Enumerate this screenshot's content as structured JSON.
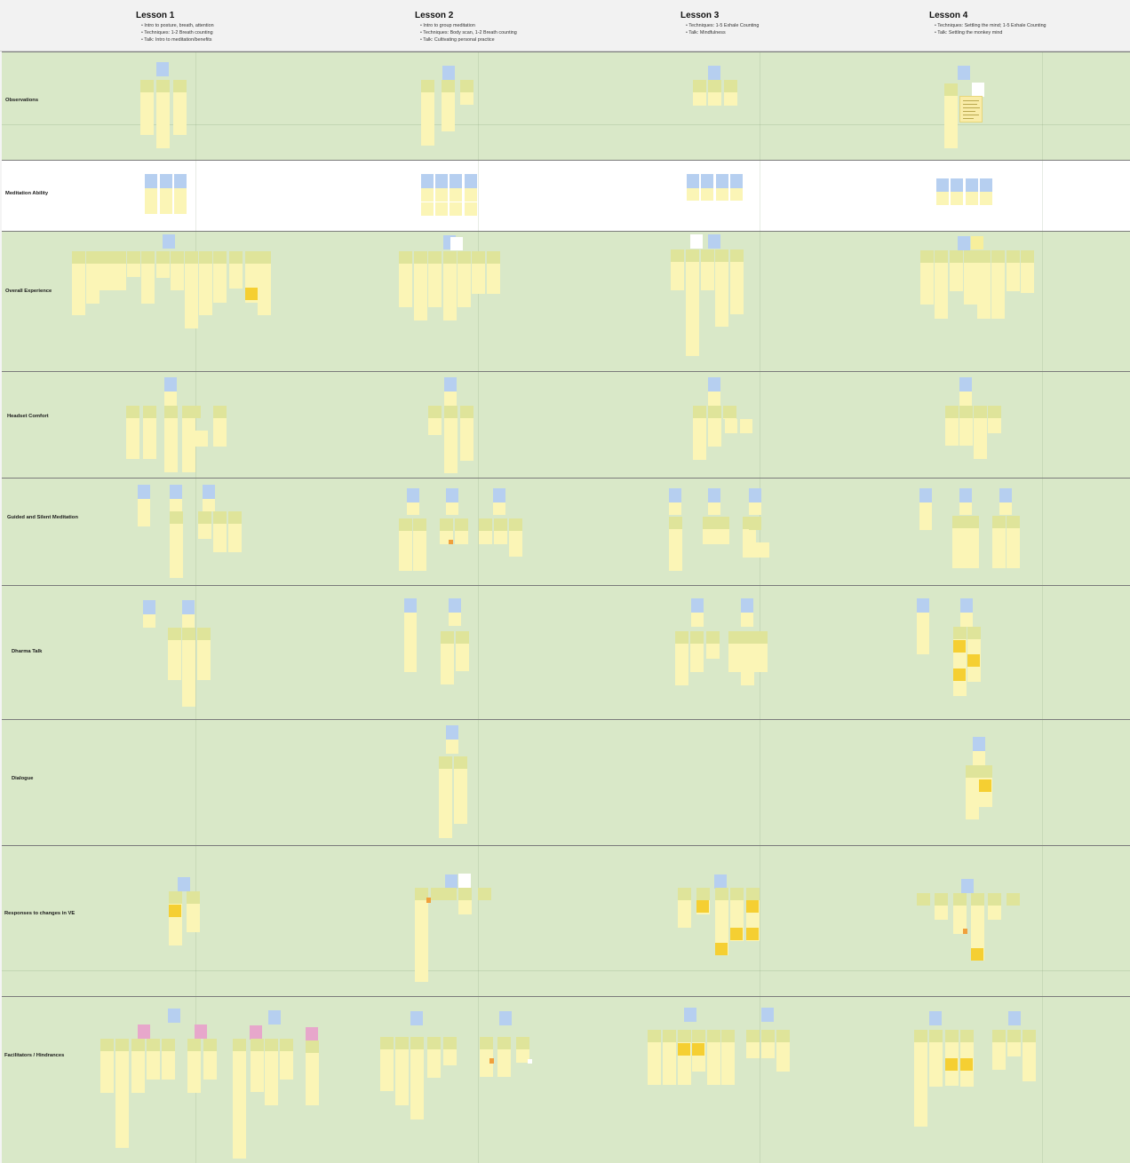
{
  "lessons": [
    {
      "title": "Lesson 1",
      "bullets": [
        "Intro to posture, breath, attention",
        "Techniques: 1-2 Breath counting",
        "Talk: Intro to meditation/benefits"
      ]
    },
    {
      "title": "Lesson 2",
      "bullets": [
        "Intro to group meditation",
        "Techniques: Body scan, 1-2 Breath counting",
        "Talk: Cultivating personal practice"
      ]
    },
    {
      "title": "Lesson 3",
      "bullets": [
        "Techniques: 1-5 Exhale Counting",
        "Talk: Mindfulness"
      ]
    },
    {
      "title": "Lesson 4",
      "bullets": [
        "Techniques: Settling the mind; 1-5 Exhale Counting",
        "Talk: Settling the monkey mind"
      ]
    }
  ],
  "rows": [
    {
      "label": "Observations"
    },
    {
      "label": "Meditation Ability"
    },
    {
      "label": "Overall Experience"
    },
    {
      "label": "Headset Comfort"
    },
    {
      "label": "Guided and Silent Meditation"
    },
    {
      "label": "Dharma Talk"
    },
    {
      "label": "Dialogue"
    },
    {
      "label": "Responses to changes in VE"
    },
    {
      "label": "Facilitators / Hindrances"
    }
  ],
  "colors": {
    "row_background": "#d9e8c8",
    "sticky_blue": "#b6cff0",
    "sticky_header": "#dfe49a",
    "sticky_yellow": "#fbf5b6",
    "sticky_gold": "#f5cf32",
    "sticky_pink": "#e7a7cb",
    "sticky_orange": "#f0a03c"
  }
}
